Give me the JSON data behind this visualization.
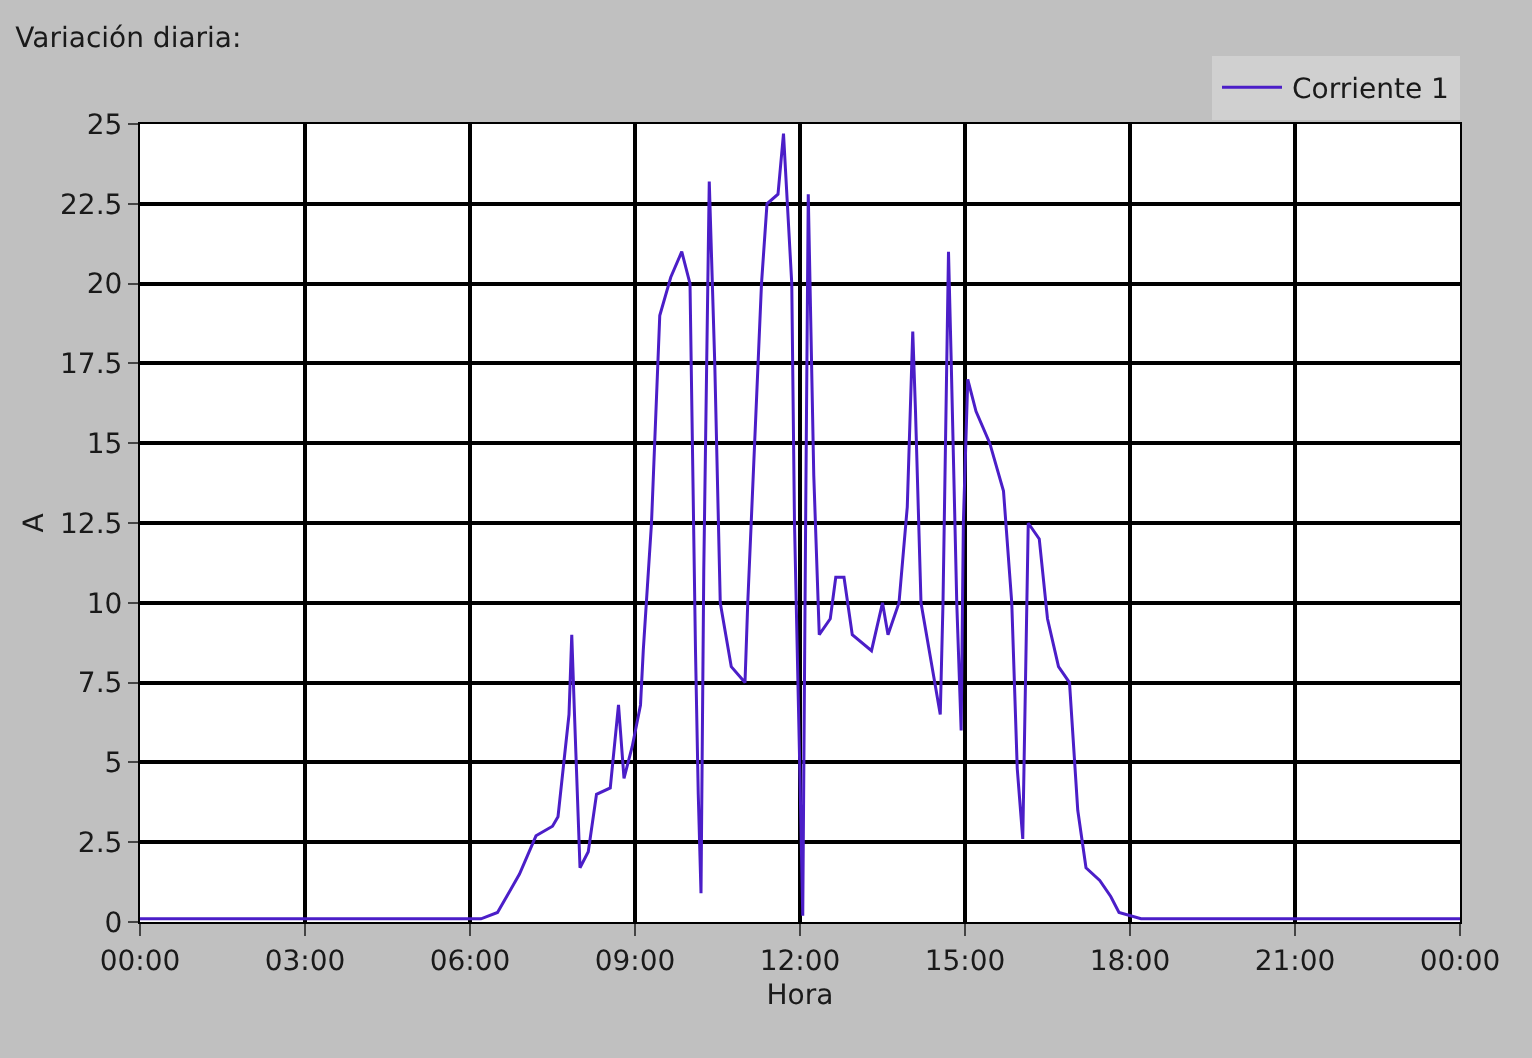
{
  "chart_data": {
    "type": "line",
    "title": "Variación diaria:",
    "xlabel": "Hora",
    "ylabel": "A",
    "x": [
      0,
      3,
      6.2,
      6.5,
      6.9,
      7.2,
      7.5,
      7.6,
      7.8,
      7.85,
      7.9,
      8.0,
      8.15,
      8.3,
      8.55,
      8.7,
      8.8,
      8.95,
      9.1,
      9.15,
      9.3,
      9.45,
      9.65,
      9.85,
      10.0,
      10.1,
      10.15,
      10.2,
      10.25,
      10.35,
      10.45,
      10.55,
      10.75,
      11.0,
      11.05,
      11.3,
      11.4,
      11.6,
      11.7,
      11.85,
      11.9,
      12.0,
      12.05,
      12.1,
      12.15,
      12.25,
      12.35,
      12.55,
      12.65,
      12.8,
      12.95,
      13.3,
      13.5,
      13.6,
      13.8,
      13.95,
      14.05,
      14.1,
      14.2,
      14.45,
      14.55,
      14.6,
      14.7,
      14.75,
      14.85,
      14.93,
      14.97,
      15.05,
      15.2,
      15.45,
      15.7,
      15.85,
      15.95,
      16.05,
      16.15,
      16.35,
      16.5,
      16.7,
      16.9,
      17.05,
      17.2,
      17.45,
      17.65,
      17.8,
      18.2,
      21,
      24
    ],
    "series": [
      {
        "name": "Corriente 1",
        "color": "#4b1ec8",
        "values": [
          0.1,
          0.1,
          0.1,
          0.3,
          1.5,
          2.7,
          3.0,
          3.3,
          6.5,
          9.0,
          6.5,
          1.7,
          2.2,
          4.0,
          4.2,
          6.8,
          4.5,
          5.5,
          6.8,
          8.5,
          12.5,
          19.0,
          20.2,
          21.0,
          20.0,
          8.5,
          4.0,
          0.9,
          11,
          23.2,
          17.5,
          10,
          8.0,
          7.5,
          10,
          20,
          22.5,
          22.8,
          24.7,
          20,
          12.5,
          4.5,
          0.2,
          12,
          22.8,
          14,
          9.0,
          9.5,
          10.8,
          10.8,
          9.0,
          8.5,
          10.0,
          9.0,
          10,
          13,
          18.5,
          16,
          10,
          7.5,
          6.5,
          10,
          21,
          17.5,
          10,
          6.0,
          12.5,
          17,
          16,
          15,
          13.5,
          10,
          4.8,
          2.6,
          12.5,
          12,
          9.5,
          8.0,
          7.5,
          3.5,
          1.7,
          1.3,
          0.8,
          0.3,
          0.1,
          0.1,
          0.1
        ]
      }
    ],
    "xlim": [
      0,
      24
    ],
    "xticks": [
      {
        "value": 0,
        "label": "00:00"
      },
      {
        "value": 3,
        "label": "03:00"
      },
      {
        "value": 6,
        "label": "06:00"
      },
      {
        "value": 9,
        "label": "09:00"
      },
      {
        "value": 12,
        "label": "12:00"
      },
      {
        "value": 15,
        "label": "15:00"
      },
      {
        "value": 18,
        "label": "18:00"
      },
      {
        "value": 21,
        "label": "21:00"
      },
      {
        "value": 24,
        "label": "00:00"
      }
    ],
    "ylim": [
      0,
      25
    ],
    "yticks": [
      0,
      2.5,
      5,
      7.5,
      10,
      12.5,
      15,
      17.5,
      20,
      22.5,
      25
    ],
    "grid": true,
    "legend": "top right"
  }
}
